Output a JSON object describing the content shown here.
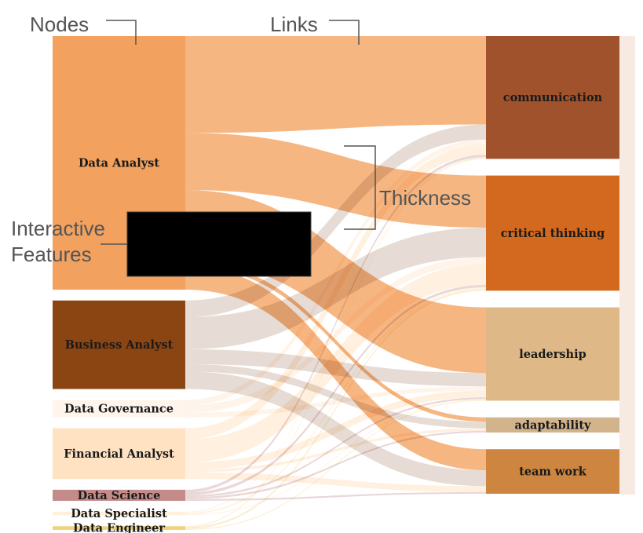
{
  "annotations": {
    "nodes": "Nodes",
    "links": "Links",
    "thickness": "Thickness",
    "interactive_line1": "Interactive",
    "interactive_line2": "Features"
  },
  "chart_data": {
    "type": "sankey",
    "sources": [
      {
        "name": "Data Analyst",
        "color": "#F2A15E"
      },
      {
        "name": "Business Analyst",
        "color": "#8B4513"
      },
      {
        "name": "Data Governance",
        "color": "#FFF5EC"
      },
      {
        "name": "Financial Analyst",
        "color": "#FFE2C2"
      },
      {
        "name": "Data Science",
        "color": "#C48B8B"
      },
      {
        "name": "Data Specialist",
        "color": "#FFF0DC"
      },
      {
        "name": "Data Engineer",
        "color": "#F0D27A"
      }
    ],
    "targets": [
      {
        "name": "communication",
        "color": "#A0522D"
      },
      {
        "name": "critical thinking",
        "color": "#D2691E"
      },
      {
        "name": "leadership",
        "color": "#DEB887"
      },
      {
        "name": "adaptability",
        "color": "#D2B48C"
      },
      {
        "name": "team work",
        "color": "#CD853F"
      }
    ],
    "links": [
      {
        "source": "Data Analyst",
        "target": "communication",
        "value": 105
      },
      {
        "source": "Data Analyst",
        "target": "critical thinking",
        "value": 62
      },
      {
        "source": "Data Analyst",
        "target": "leadership",
        "value": 78
      },
      {
        "source": "Data Analyst",
        "target": "adaptability",
        "value": 5
      },
      {
        "source": "Data Analyst",
        "target": "team work",
        "value": 25
      },
      {
        "source": "Business Analyst",
        "target": "communication",
        "value": 18
      },
      {
        "source": "Business Analyst",
        "target": "critical thinking",
        "value": 35
      },
      {
        "source": "Business Analyst",
        "target": "leadership",
        "value": 16
      },
      {
        "source": "Business Analyst",
        "target": "adaptability",
        "value": 8
      },
      {
        "source": "Business Analyst",
        "target": "team work",
        "value": 19
      },
      {
        "source": "Data Governance",
        "target": "communication",
        "value": 6
      },
      {
        "source": "Data Governance",
        "target": "critical thinking",
        "value": 8
      },
      {
        "source": "Data Governance",
        "target": "leadership",
        "value": 5
      },
      {
        "source": "Financial Analyst",
        "target": "communication",
        "value": 12
      },
      {
        "source": "Financial Analyst",
        "target": "critical thinking",
        "value": 25
      },
      {
        "source": "Financial Analyst",
        "target": "leadership",
        "value": 8
      },
      {
        "source": "Financial Analyst",
        "target": "adaptability",
        "value": 3
      },
      {
        "source": "Financial Analyst",
        "target": "team work",
        "value": 7
      },
      {
        "source": "Data Science",
        "target": "communication",
        "value": 3
      },
      {
        "source": "Data Science",
        "target": "critical thinking",
        "value": 3
      },
      {
        "source": "Data Science",
        "target": "leadership",
        "value": 2
      },
      {
        "source": "Data Science",
        "target": "adaptability",
        "value": 2
      },
      {
        "source": "Data Science",
        "target": "team work",
        "value": 2
      },
      {
        "source": "Data Specialist",
        "target": "communication",
        "value": 1
      },
      {
        "source": "Data Specialist",
        "target": "critical thinking",
        "value": 2
      },
      {
        "source": "Data Specialist",
        "target": "leadership",
        "value": 1
      },
      {
        "source": "Data Engineer",
        "target": "communication",
        "value": 1
      },
      {
        "source": "Data Engineer",
        "target": "critical thinking",
        "value": 2
      },
      {
        "source": "Data Engineer",
        "target": "leadership",
        "value": 1
      }
    ]
  }
}
